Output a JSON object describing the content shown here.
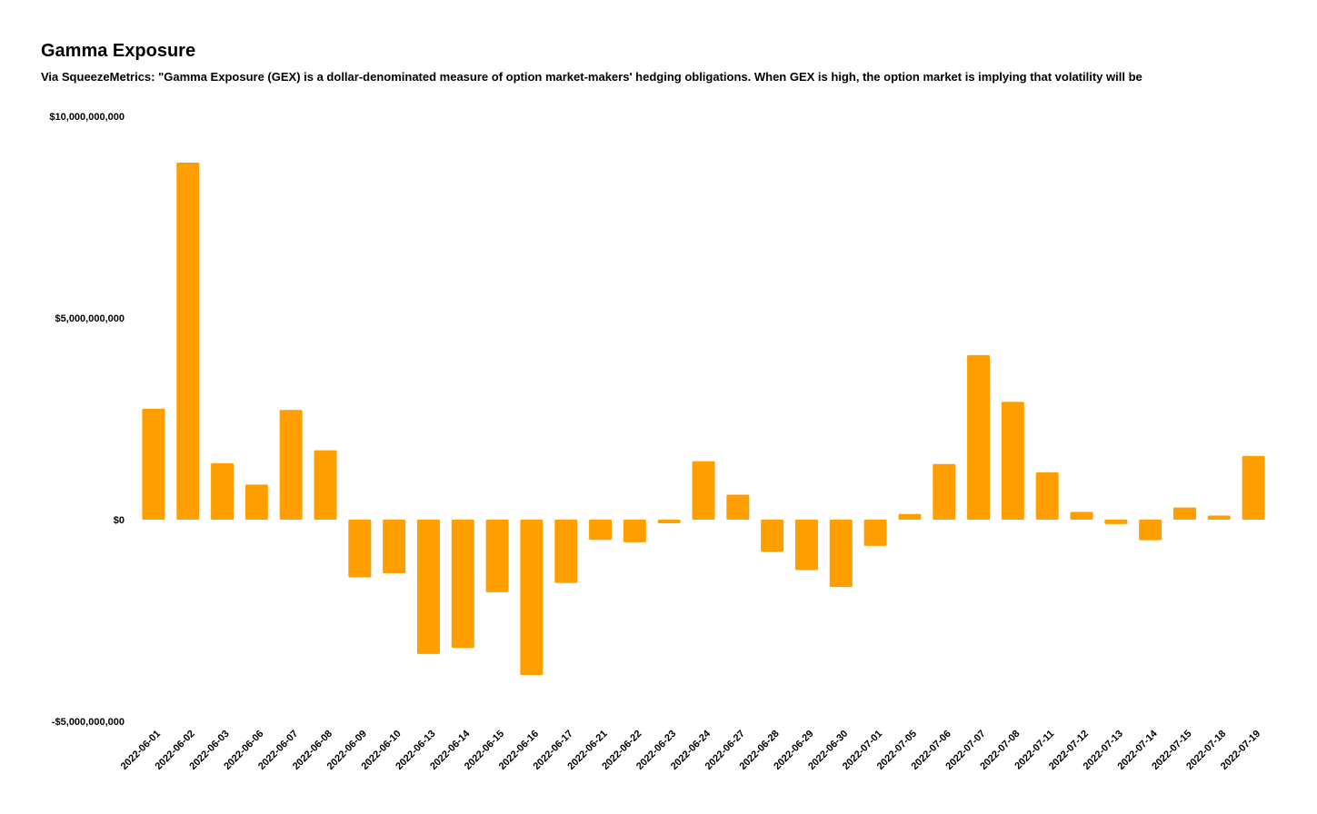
{
  "chart_data": {
    "type": "bar",
    "title": "Gamma Exposure",
    "subtitle": "Via SqueezeMetrics: \"Gamma Exposure (GEX) is a dollar-denominated measure of option market-makers' hedging obligations. When GEX is high, the option market is implying that volatility will be",
    "xlabel": "",
    "ylabel": "",
    "ylim": [
      -5000000000,
      10000000000
    ],
    "y_ticks": [
      {
        "value": 10000000000,
        "label": "$10,000,000,000"
      },
      {
        "value": 5000000000,
        "label": "$5,000,000,000"
      },
      {
        "value": 0,
        "label": "$0"
      },
      {
        "value": -5000000000,
        "label": "-$5,000,000,000"
      }
    ],
    "grid": false,
    "bar_color": "#FF9E00",
    "categories": [
      "2022-06-01",
      "2022-06-02",
      "2022-06-03",
      "2022-06-06",
      "2022-06-07",
      "2022-06-08",
      "2022-06-09",
      "2022-06-10",
      "2022-06-13",
      "2022-06-14",
      "2022-06-15",
      "2022-06-16",
      "2022-06-17",
      "2022-06-21",
      "2022-06-22",
      "2022-06-23",
      "2022-06-24",
      "2022-06-27",
      "2022-06-28",
      "2022-06-29",
      "2022-06-30",
      "2022-07-01",
      "2022-07-05",
      "2022-07-06",
      "2022-07-07",
      "2022-07-08",
      "2022-07-11",
      "2022-07-12",
      "2022-07-13",
      "2022-07-14",
      "2022-07-15",
      "2022-07-18",
      "2022-07-19"
    ],
    "values": [
      2750000000,
      8850000000,
      1400000000,
      870000000,
      2720000000,
      1720000000,
      -1430000000,
      -1330000000,
      -3330000000,
      -3180000000,
      -1800000000,
      -3850000000,
      -1570000000,
      -500000000,
      -560000000,
      -90000000,
      1450000000,
      620000000,
      -800000000,
      -1250000000,
      -1670000000,
      -650000000,
      140000000,
      1380000000,
      4080000000,
      2920000000,
      1170000000,
      190000000,
      -110000000,
      -510000000,
      300000000,
      100000000,
      1580000000
    ]
  }
}
